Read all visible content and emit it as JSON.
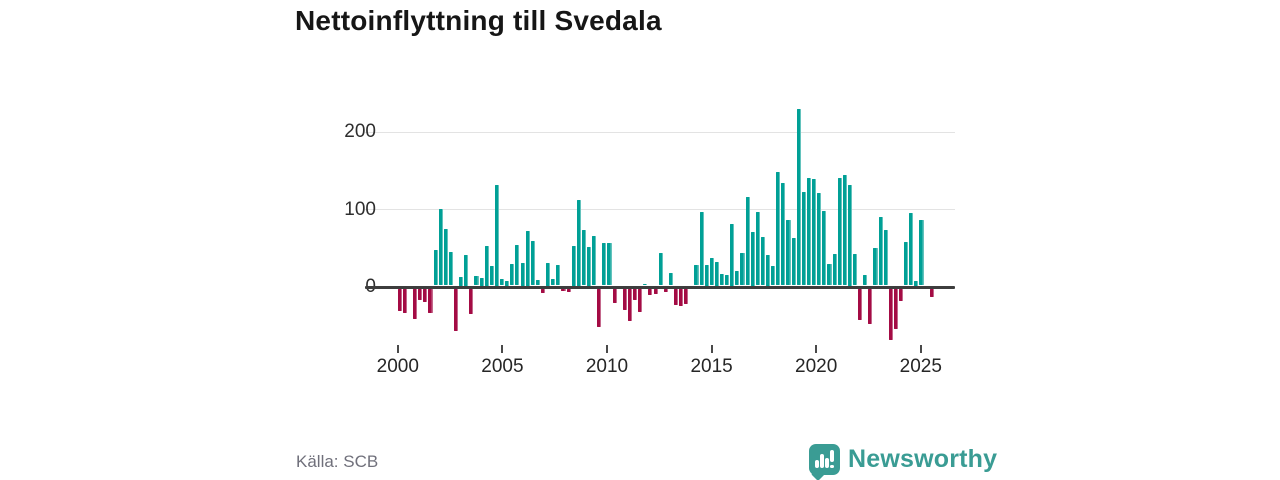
{
  "header": {
    "title": "Nettoinflyttning till Svedala"
  },
  "chart_data": {
    "type": "bar",
    "title": "Nettoinflyttning till Svedala",
    "frequency": "quarterly",
    "period": "2000–2025",
    "start": "2000 Q1",
    "x_tick_labels": [
      "2000",
      "2005",
      "2010",
      "2015",
      "2020",
      "2025"
    ],
    "y_ticks": [
      0,
      100,
      200
    ],
    "ylim": [
      -75,
      240
    ],
    "grid": "horizontal",
    "legend": "none",
    "positive_color": "#00a096",
    "negative_color": "#a40b44",
    "values": [
      -29,
      -31,
      0,
      -39,
      -15,
      -17,
      -31,
      46,
      99,
      73,
      43,
      -55,
      11,
      40,
      -33,
      12,
      10,
      51,
      25,
      130,
      8,
      6,
      28,
      52,
      29,
      71,
      57,
      7,
      -6,
      29,
      8,
      27,
      -3,
      -4,
      51,
      111,
      72,
      50,
      64,
      -50,
      55,
      55,
      -18,
      0,
      -28,
      -42,
      -15,
      -30,
      2,
      -8,
      -7,
      42,
      -4,
      16,
      -21,
      -22,
      -20,
      0,
      27,
      95,
      26,
      36,
      31,
      15,
      14,
      80,
      19,
      42,
      114,
      69,
      95,
      63,
      40,
      25,
      147,
      132,
      84,
      61,
      228,
      121,
      139,
      137,
      119,
      96,
      28,
      41,
      139,
      143,
      130,
      41,
      -41,
      13,
      -46,
      48,
      88,
      72,
      -67,
      -52,
      -16,
      56,
      93,
      6,
      84,
      0,
      -11
    ]
  },
  "footer": {
    "source": "Källa: SCB",
    "brand": "Newsworthy"
  }
}
